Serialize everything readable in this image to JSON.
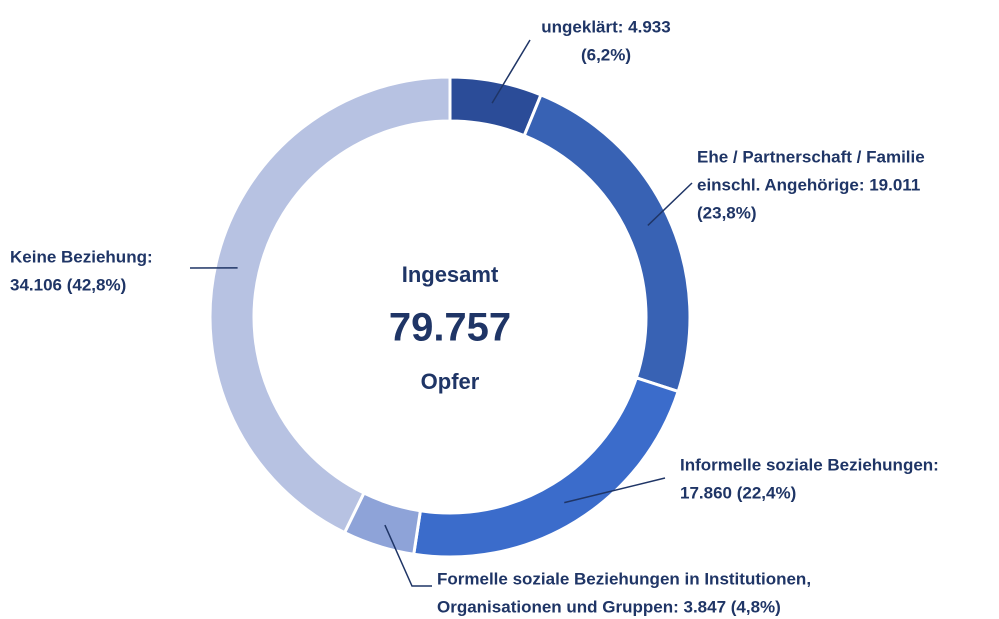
{
  "chart_data": {
    "type": "donut",
    "categories": [
      "ungeklärt",
      "Ehe / Partnerschaft / Familie einschl. Angehörige",
      "Informelle soziale Beziehungen",
      "Formelle soziale Beziehungen in Institutionen, Organisationen und Gruppen",
      "Keine Beziehung"
    ],
    "values": [
      4933,
      19011,
      17860,
      3847,
      34106
    ],
    "value_labels": [
      [
        "ungeklärt: 4.933",
        "(6,2%)"
      ],
      [
        "Ehe / Partnerschaft / Familie",
        "einschl. Angehörige: 19.011",
        "(23,8%)"
      ],
      [
        "Informelle soziale Beziehungen:",
        "17.860 (22,4%)"
      ],
      [
        "Formelle soziale Beziehungen in Institutionen,",
        "Organisationen und Gruppen: 3.847 (4,8%)"
      ],
      [
        "Keine Beziehung:",
        "34.106 (42,8%)"
      ]
    ],
    "colors": [
      "#2b4c98",
      "#3862b4",
      "#3b6ccb",
      "#8ea3d8",
      "#b7c2e2"
    ],
    "center": {
      "top": "Ingesamt",
      "total": "79.757",
      "bottom": "Opfer"
    }
  }
}
